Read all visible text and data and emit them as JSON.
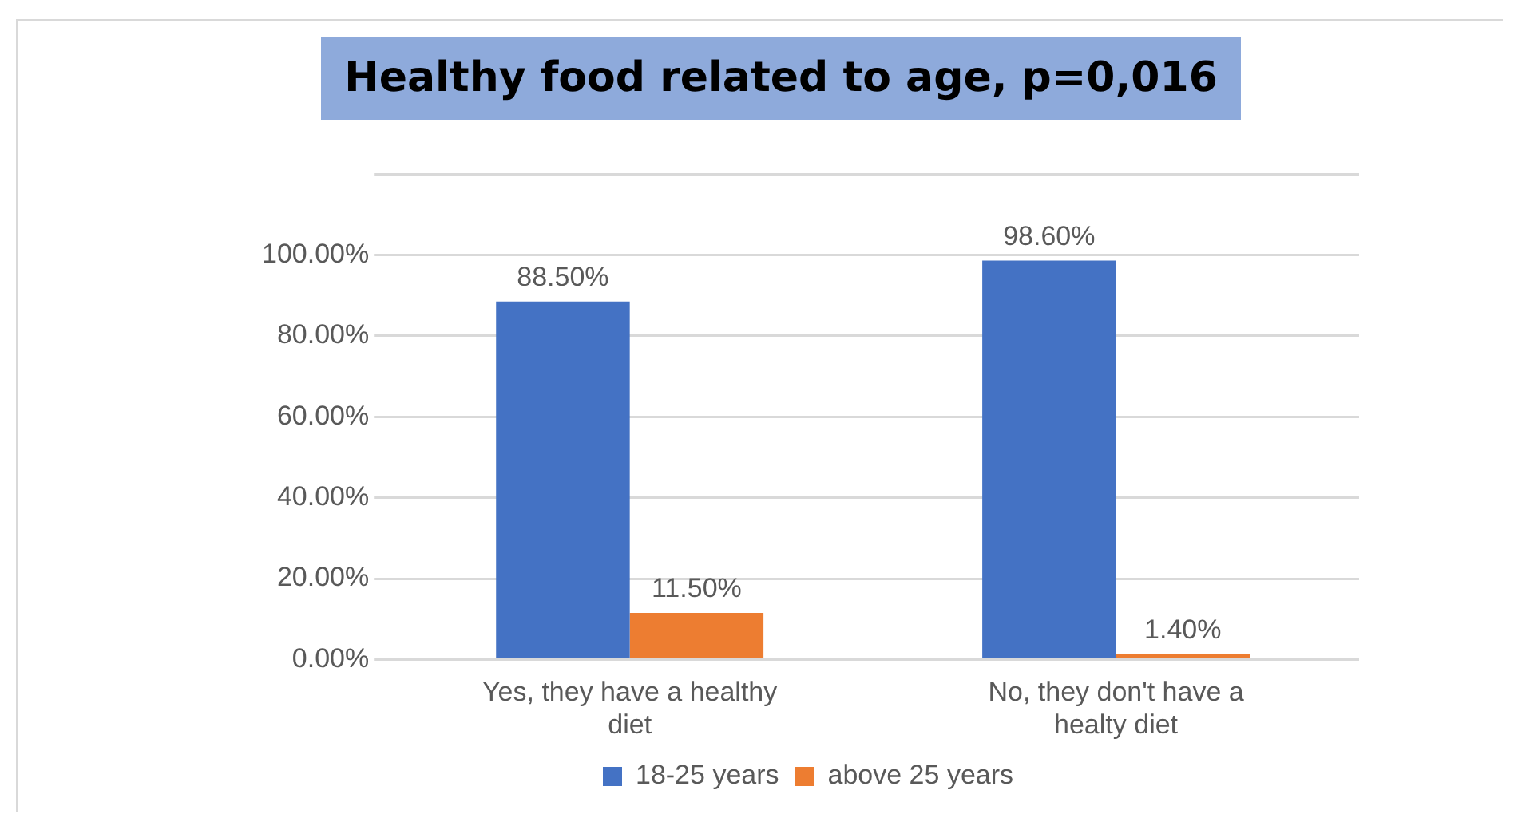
{
  "chart_data": {
    "type": "bar",
    "title": "Healthy food related to age, p=0,016",
    "categories": [
      "Yes, they have a healthy diet",
      "No, they don't have a healty diet"
    ],
    "series": [
      {
        "name": "18-25 years",
        "color": "#4472c4",
        "values": [
          88.5,
          98.6
        ],
        "value_labels": [
          "88.50%",
          "98.60%"
        ]
      },
      {
        "name": "above 25 years",
        "color": "#ed7d31",
        "values": [
          11.5,
          1.4
        ],
        "value_labels": [
          "11.50%",
          "1.40%"
        ]
      }
    ],
    "ylim": [
      0,
      120
    ],
    "yticks": [
      {
        "value": 0,
        "label": "0.00%"
      },
      {
        "value": 20,
        "label": "20.00%"
      },
      {
        "value": 40,
        "label": "40.00%"
      },
      {
        "value": 60,
        "label": "60.00%"
      },
      {
        "value": 80,
        "label": "80.00%"
      },
      {
        "value": 100,
        "label": "100.00%"
      },
      {
        "value": 120,
        "label": null
      }
    ],
    "grid": "y",
    "legend": "bottom"
  }
}
